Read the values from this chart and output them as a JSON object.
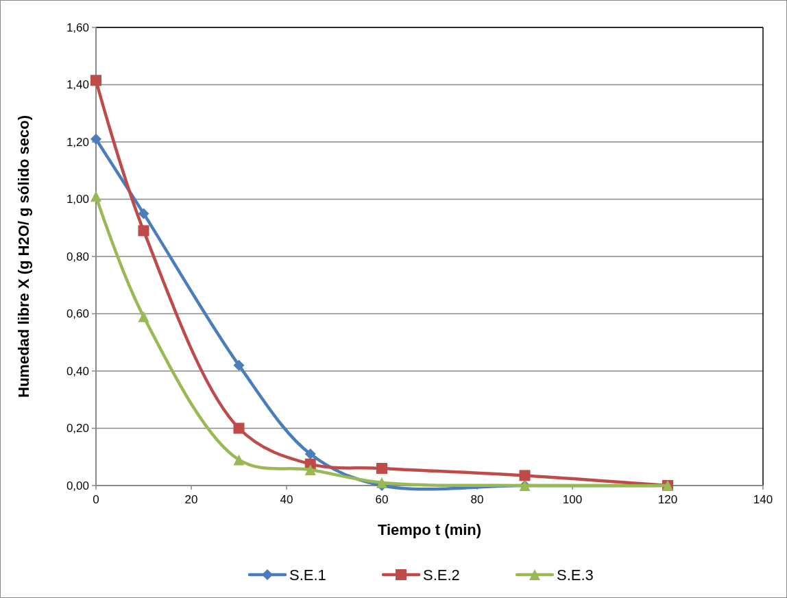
{
  "chart_data": {
    "type": "line",
    "xlabel": "Tiempo t (min)",
    "ylabel": "Humedad libre X (g H2O/ g sólido seco)",
    "x": [
      0,
      10,
      30,
      45,
      60,
      90,
      120
    ],
    "series": [
      {
        "name": "S.E.1",
        "color": "#4a7ebb",
        "marker": "diamond",
        "values": [
          1.21,
          0.95,
          0.42,
          0.11,
          0.0,
          0.0,
          0.0
        ]
      },
      {
        "name": "S.E.2",
        "color": "#be4b48",
        "marker": "square",
        "values": [
          1.415,
          0.89,
          0.2,
          0.075,
          0.06,
          0.035,
          0.0
        ]
      },
      {
        "name": "S.E.3",
        "color": "#98b954",
        "marker": "triangle",
        "values": [
          1.01,
          0.59,
          0.09,
          0.055,
          0.01,
          0.0,
          0.0
        ]
      }
    ],
    "xlim": [
      0,
      140
    ],
    "xticks": [
      0,
      20,
      40,
      60,
      80,
      100,
      120,
      140
    ],
    "ylim": [
      0,
      1.6
    ],
    "yticks": [
      {
        "value": 0,
        "label": "0,00"
      },
      {
        "value": 0.2,
        "label": "0,20"
      },
      {
        "value": 0.4,
        "label": "0,40"
      },
      {
        "value": 0.6,
        "label": "0,60"
      },
      {
        "value": 0.8,
        "label": "0,80"
      },
      {
        "value": 1.0,
        "label": "1,00"
      },
      {
        "value": 1.2,
        "label": "1,20"
      },
      {
        "value": 1.4,
        "label": "1,40"
      },
      {
        "value": 1.6,
        "label": "1,60"
      }
    ],
    "grid": "y",
    "legend": "bottom",
    "line_style": "solid"
  }
}
